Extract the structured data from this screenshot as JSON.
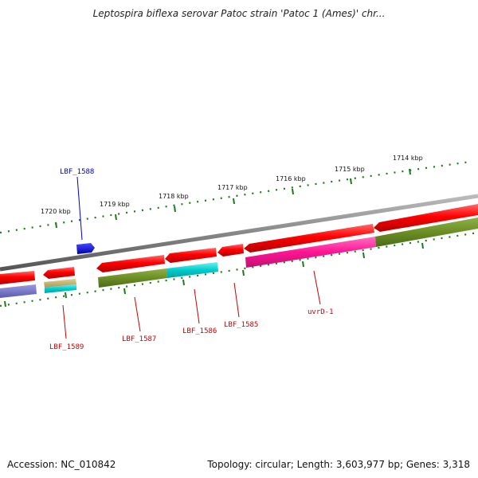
{
  "title": "Leptospira biflexa serovar Patoc strain 'Patoc 1 (Ames)' chr...",
  "ticks": [
    "1720 kbp",
    "1719 kbp",
    "1718 kbp",
    "1717 kbp",
    "1716 kbp",
    "1715 kbp",
    "1714 kbp"
  ],
  "genes": {
    "lbf1588": "LBF_1588",
    "lbf1589": "LBF_1589",
    "lbf1587": "LBF_1587",
    "lbf1586": "LBF_1586",
    "lbf1585": "LBF_1585",
    "uvrd1": "uvrD-1"
  },
  "footer": {
    "accession": "Accession: NC_010842",
    "summary": "Topology: circular; Length: 3,603,977 bp; Genes: 3,318"
  },
  "colors": {
    "forward_cds": "#ff0000",
    "reverse_cds": "#ff0000",
    "blue_gene": "#0000ee",
    "olive": "#6b8e23",
    "cyan": "#00c8c8",
    "magenta": "#ff1493",
    "tick_green": "#1a7a1a",
    "label_red": "#cc0000",
    "label_blue": "#0000cc"
  }
}
